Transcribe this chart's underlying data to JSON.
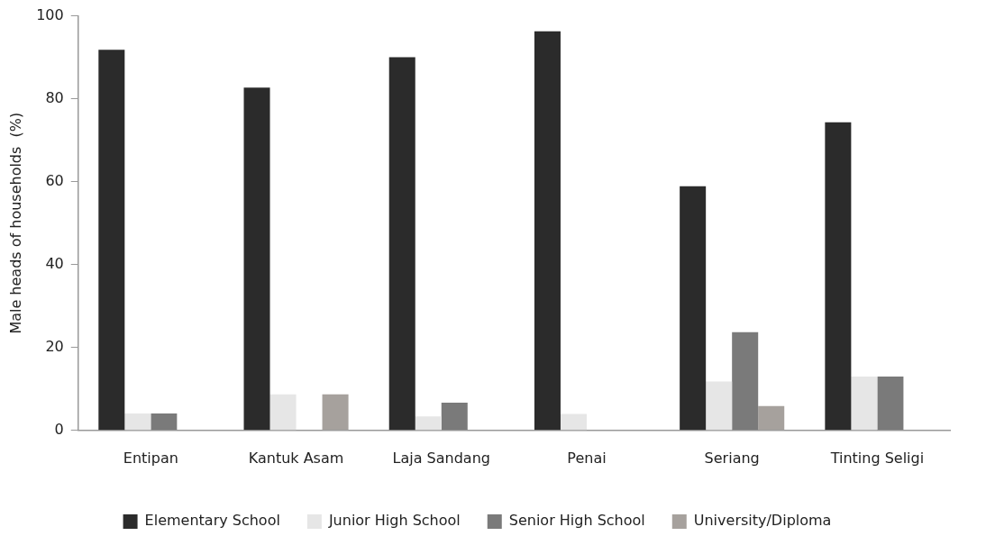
{
  "chart_data": {
    "type": "bar",
    "ylabel": "Male heads of households  (%)",
    "categories": [
      "Entipan",
      "Kantuk Asam",
      "Laja Sandang",
      "Penai",
      "Seriang",
      "Tinting Seligi"
    ],
    "series": [
      {
        "name": "Elementary School",
        "color": "#2b2b2b",
        "values": [
          91.8,
          82.7,
          90.0,
          96.3,
          58.9,
          74.3
        ]
      },
      {
        "name": "Junior High School",
        "color": "#e6e6e6",
        "values": [
          4.1,
          8.7,
          3.4,
          4.0,
          11.8,
          13.0
        ]
      },
      {
        "name": "Senior High School",
        "color": "#7a7a7a",
        "values": [
          4.1,
          null,
          6.7,
          null,
          23.7,
          13.0
        ]
      },
      {
        "name": "University/Diploma",
        "color": "#a6a19d",
        "values": [
          null,
          8.7,
          null,
          null,
          5.9,
          null
        ]
      }
    ],
    "ylim": [
      0,
      100
    ],
    "yticks": [
      0,
      20,
      40,
      60,
      80,
      100
    ],
    "grid": false,
    "legend": "bottom"
  }
}
